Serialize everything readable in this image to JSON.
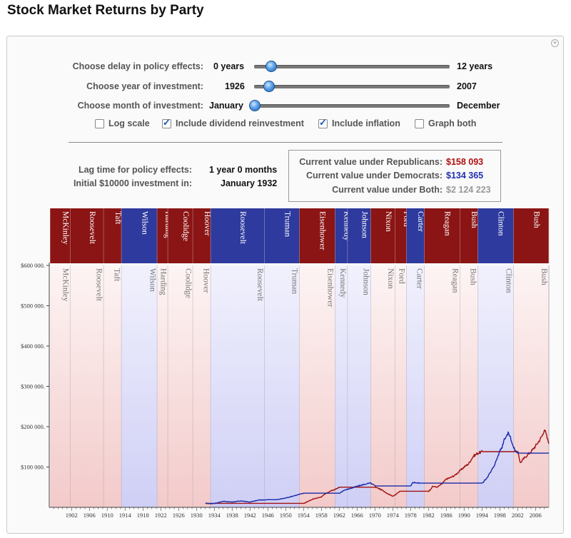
{
  "title": "Stock Market Returns by Party",
  "controls": {
    "delay": {
      "label": "Choose delay in policy effects:",
      "min_label": "0 years",
      "max_label": "12 years",
      "value": 1,
      "min": 0,
      "max": 12
    },
    "year": {
      "label": "Choose year of investment:",
      "min_label": "1926",
      "max_label": "2007",
      "value": 1932,
      "min": 1926,
      "max": 2007
    },
    "month": {
      "label": "Choose month of investment:",
      "min_label": "January",
      "max_label": "December",
      "value": 1,
      "min": 1,
      "max": 12
    },
    "checkboxes": [
      {
        "label": "Log scale",
        "checked": false
      },
      {
        "label": "Include dividend reinvestment",
        "checked": true
      },
      {
        "label": "Include inflation",
        "checked": true
      },
      {
        "label": "Graph both",
        "checked": false
      }
    ]
  },
  "info": {
    "lag_label": "Lag time for policy effects:",
    "lag_value": "1 year 0 months",
    "initial_label": "Initial $10000 investment in:",
    "initial_value": "January 1932"
  },
  "values": {
    "rep_label": "Current value under Republicans:",
    "rep_value": "$158 093",
    "dem_label": "Current value under Democrats:",
    "dem_value": "$134 365",
    "both_label": "Current value under Both:",
    "both_value": "$2 124 223"
  },
  "colors": {
    "rep_band": "#8b1414",
    "dem_band": "#2e3a9e",
    "rep_bg": "#f6dcdc",
    "dem_bg": "#dcdcf8",
    "rep_line": "#a01010",
    "dem_line": "#1a2aa8",
    "rep_value_text": "#b01010",
    "dem_value_text": "#2030b0",
    "both_value_text": "#999999"
  },
  "chart_data": {
    "type": "line",
    "xlim": [
      1897,
      2009
    ],
    "ylim": [
      0,
      600000
    ],
    "y_ticks": [
      {
        "v": 100000,
        "label": "$100 000."
      },
      {
        "v": 200000,
        "label": "$200 000."
      },
      {
        "v": 300000,
        "label": "$300 000."
      },
      {
        "v": 400000,
        "label": "$400 000."
      },
      {
        "v": 500000,
        "label": "$500 000."
      },
      {
        "v": 600000,
        "label": "$600 000."
      }
    ],
    "x_ticks": [
      1902,
      1906,
      1910,
      1914,
      1918,
      1922,
      1926,
      1930,
      1934,
      1938,
      1942,
      1946,
      1950,
      1954,
      1958,
      1962,
      1966,
      1970,
      1974,
      1978,
      1982,
      1986,
      1990,
      1994,
      1998,
      2002,
      2006
    ],
    "presidents": [
      {
        "name": "McKinley",
        "start": 1897.2,
        "end": 1901.7,
        "party": "R"
      },
      {
        "name": "Roosevelt",
        "start": 1901.7,
        "end": 1909.2,
        "party": "R"
      },
      {
        "name": "Taft",
        "start": 1909.2,
        "end": 1913.2,
        "party": "R"
      },
      {
        "name": "Wilson",
        "start": 1913.2,
        "end": 1921.2,
        "party": "D"
      },
      {
        "name": "Harding",
        "start": 1921.2,
        "end": 1923.6,
        "party": "R"
      },
      {
        "name": "Coolidge",
        "start": 1923.6,
        "end": 1929.2,
        "party": "R"
      },
      {
        "name": "Hoover",
        "start": 1929.2,
        "end": 1933.2,
        "party": "R"
      },
      {
        "name": "Roosevelt",
        "start": 1933.2,
        "end": 1945.3,
        "party": "D"
      },
      {
        "name": "Truman",
        "start": 1945.3,
        "end": 1953.1,
        "party": "D"
      },
      {
        "name": "Eisenhower",
        "start": 1953.1,
        "end": 1961.1,
        "party": "R"
      },
      {
        "name": "Kennedy",
        "start": 1961.1,
        "end": 1963.9,
        "party": "D"
      },
      {
        "name": "Johnson",
        "start": 1963.9,
        "end": 1969.1,
        "party": "D"
      },
      {
        "name": "Nixon",
        "start": 1969.1,
        "end": 1974.6,
        "party": "R"
      },
      {
        "name": "Ford",
        "start": 1974.6,
        "end": 1977.1,
        "party": "R"
      },
      {
        "name": "Carter",
        "start": 1977.1,
        "end": 1981.1,
        "party": "D"
      },
      {
        "name": "Reagan",
        "start": 1981.1,
        "end": 1989.1,
        "party": "R"
      },
      {
        "name": "Bush",
        "start": 1989.1,
        "end": 1993.1,
        "party": "R"
      },
      {
        "name": "Clinton",
        "start": 1993.1,
        "end": 2001.1,
        "party": "D"
      },
      {
        "name": "Bush",
        "start": 2001.1,
        "end": 2009.0,
        "party": "R"
      }
    ],
    "series": [
      {
        "name": "Republicans",
        "x": [
          1932.0,
          1933.2,
          1934.2,
          1946.3,
          1950,
          1953,
          1954.1,
          1956,
          1958,
          1959,
          1960,
          1961,
          1962.1,
          1964.9,
          1970.1,
          1971,
          1972,
          1973,
          1974,
          1974.5,
          1975.6,
          1978.1,
          1982.1,
          1983,
          1984,
          1985,
          1986,
          1987,
          1988,
          1989,
          1990,
          1991,
          1992,
          1993,
          1994.1,
          2002.1,
          2002.6,
          2003,
          2004,
          2005,
          2006,
          2007,
          2007.7,
          2008,
          2008.6,
          2009.0
        ],
        "y": [
          10000,
          9000,
          10000,
          10000,
          10000,
          10000,
          10000,
          20000,
          26000,
          34000,
          40000,
          44000,
          50000,
          50000,
          50000,
          46000,
          40000,
          33000,
          28000,
          30000,
          40000,
          40000,
          40000,
          52000,
          50000,
          58000,
          70000,
          74000,
          80000,
          90000,
          100000,
          108000,
          126000,
          134000,
          138000,
          138000,
          110000,
          116000,
          128000,
          138000,
          152000,
          168000,
          182000,
          196000,
          172000,
          158000
        ]
      },
      {
        "name": "Democrats",
        "x": [
          1932.0,
          1934.2,
          1936,
          1938,
          1940,
          1942,
          1944,
          1946.3,
          1948,
          1950,
          1952,
          1954.1,
          1962.1,
          1963,
          1964.9,
          1966,
          1968,
          1969,
          1970.1,
          1978.1,
          1978.5,
          1980,
          1982.1,
          1994.1,
          1995,
          1996,
          1997,
          1998,
          1998.5,
          1999,
          1999.5,
          2000,
          2000.5,
          2001,
          2001.5,
          2002.1,
          2009.0
        ],
        "y": [
          10000,
          10000,
          15000,
          13000,
          16000,
          13000,
          18000,
          19000,
          19000,
          23000,
          29000,
          35000,
          35000,
          42000,
          48000,
          52000,
          58000,
          60000,
          53000,
          53000,
          62000,
          60000,
          60000,
          60000,
          72000,
          88000,
          110000,
          140000,
          150000,
          170000,
          178000,
          184000,
          170000,
          150000,
          140000,
          134365,
          134365
        ]
      }
    ]
  }
}
